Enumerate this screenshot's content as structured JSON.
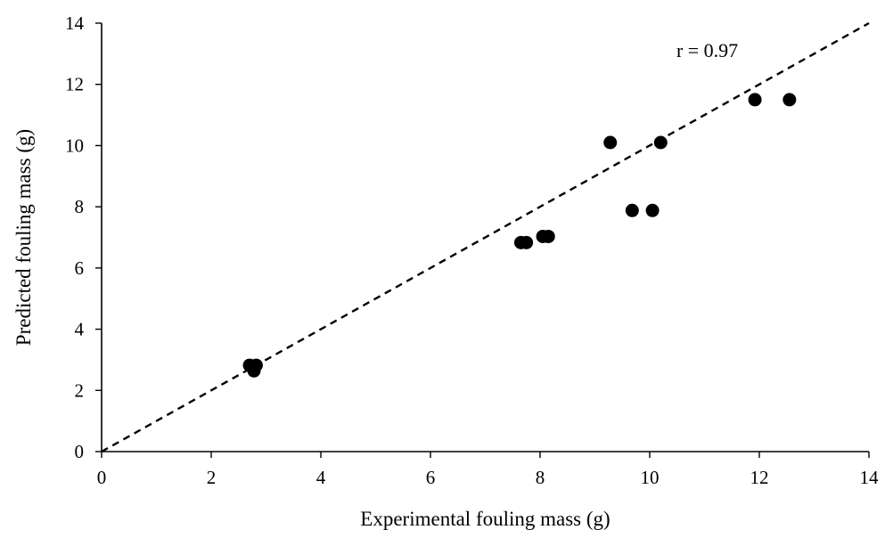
{
  "chart_data": {
    "type": "scatter",
    "title": "",
    "xlabel": "Experimental fouling mass (g)",
    "ylabel": "Predicted fouling mass (g)",
    "xlim": [
      0,
      14
    ],
    "ylim": [
      0,
      14
    ],
    "xticks": [
      0,
      2,
      4,
      6,
      8,
      10,
      12,
      14
    ],
    "yticks": [
      0,
      2,
      4,
      6,
      8,
      10,
      12,
      14
    ],
    "grid": false,
    "legend": "none",
    "colors": {
      "points": "#000000",
      "line": "#000000",
      "axes": "#000000"
    },
    "series": [
      {
        "x": [
          2.7,
          2.82,
          2.78,
          7.65,
          7.75,
          8.05,
          8.15,
          9.28,
          9.68,
          10.05,
          10.2,
          11.92,
          12.55
        ],
        "y": [
          2.82,
          2.82,
          2.64,
          6.83,
          6.83,
          7.03,
          7.03,
          10.1,
          7.88,
          7.88,
          10.1,
          11.5,
          11.5
        ]
      }
    ],
    "reference_line": {
      "style": "dashed",
      "x": [
        0,
        14
      ],
      "y": [
        0,
        14
      ]
    },
    "annotations": [
      {
        "text": "r = 0.97",
        "x": 11.05,
        "y": 12.9
      }
    ]
  }
}
